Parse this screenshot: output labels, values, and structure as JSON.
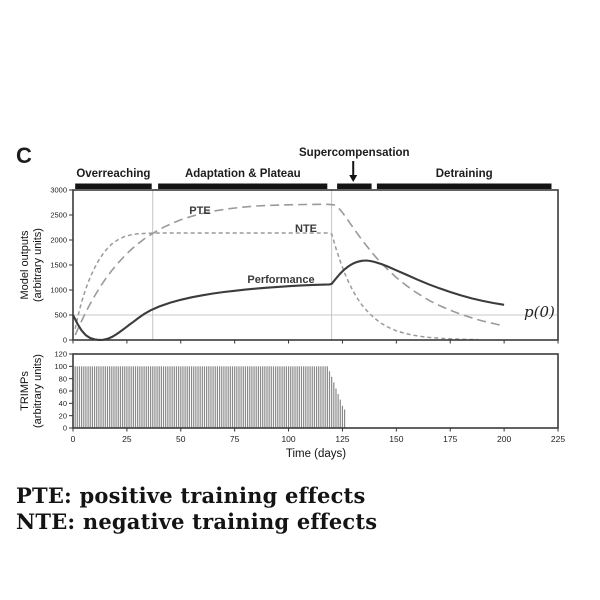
{
  "figure": {
    "panel_label": "C",
    "phases": [
      {
        "label": "Overreaching",
        "bar_days": [
          1,
          36.5
        ]
      },
      {
        "label": "Adaptation & Plateau",
        "bar_days": [
          39.5,
          118
        ]
      },
      {
        "label": "Supercompensation",
        "bar_days": [
          122.5,
          138.5
        ],
        "arrow_day": 130
      },
      {
        "label": "Detraining",
        "bar_days": [
          141,
          222
        ]
      }
    ]
  },
  "caption": {
    "line1": "PTE: positive training effects",
    "line2": "NTE: negative training effects"
  },
  "chart_data": [
    {
      "type": "line",
      "ylabel_line1": "Model outputs",
      "ylabel_line2": "(arbitrary units)",
      "ylim": [
        0,
        3000
      ],
      "yticks": [
        0,
        500,
        1000,
        1500,
        2000,
        2500,
        3000
      ],
      "xlim": [
        0,
        225
      ],
      "grid": false,
      "reference_lines": {
        "horizontal_p0_level": 500,
        "vertical_days": [
          37,
          120
        ]
      },
      "annotations": [
        {
          "text": "p(0)",
          "x_day": 211,
          "y_value": 500
        }
      ],
      "series": [
        {
          "name": "PTE",
          "style": "long-dash",
          "color": "#9a9a9a",
          "points": [
            [
              1,
              100
            ],
            [
              3,
              290
            ],
            [
              5,
              475
            ],
            [
              7,
              645
            ],
            [
              9,
              805
            ],
            [
              11,
              950
            ],
            [
              13,
              1090
            ],
            [
              15,
              1215
            ],
            [
              18,
              1390
            ],
            [
              21,
              1545
            ],
            [
              24,
              1685
            ],
            [
              27,
              1810
            ],
            [
              30,
              1920
            ],
            [
              33,
              2020
            ],
            [
              36,
              2105
            ],
            [
              39,
              2185
            ],
            [
              42,
              2255
            ],
            [
              46,
              2335
            ],
            [
              50,
              2405
            ],
            [
              55,
              2475
            ],
            [
              60,
              2530
            ],
            [
              66,
              2585
            ],
            [
              72,
              2625
            ],
            [
              78,
              2655
            ],
            [
              85,
              2680
            ],
            [
              92,
              2695
            ],
            [
              100,
              2705
            ],
            [
              108,
              2710
            ],
            [
              118,
              2715
            ],
            [
              121,
              2705
            ],
            [
              123,
              2650
            ],
            [
              125,
              2550
            ],
            [
              127,
              2430
            ],
            [
              129,
              2305
            ],
            [
              131,
              2185
            ],
            [
              133,
              2065
            ],
            [
              135,
              1950
            ],
            [
              137,
              1840
            ],
            [
              139,
              1735
            ],
            [
              141,
              1635
            ],
            [
              144,
              1495
            ],
            [
              147,
              1370
            ],
            [
              150,
              1250
            ],
            [
              154,
              1110
            ],
            [
              158,
              985
            ],
            [
              162,
              875
            ],
            [
              166,
              775
            ],
            [
              170,
              690
            ],
            [
              174,
              615
            ],
            [
              178,
              545
            ],
            [
              182,
              485
            ],
            [
              186,
              430
            ],
            [
              190,
              380
            ],
            [
              194,
              340
            ],
            [
              197,
              310
            ],
            [
              200,
              285
            ]
          ]
        },
        {
          "name": "NTE",
          "style": "short-dash",
          "color": "#9a9a9a",
          "points": [
            [
              1,
              225
            ],
            [
              2,
              420
            ],
            [
              3,
              600
            ],
            [
              4,
              760
            ],
            [
              6,
              1030
            ],
            [
              8,
              1255
            ],
            [
              10,
              1445
            ],
            [
              12,
              1600
            ],
            [
              14,
              1730
            ],
            [
              16,
              1835
            ],
            [
              18,
              1920
            ],
            [
              21,
              2010
            ],
            [
              24,
              2070
            ],
            [
              27,
              2105
            ],
            [
              30,
              2125
            ],
            [
              34,
              2135
            ],
            [
              40,
              2140
            ],
            [
              50,
              2140
            ],
            [
              60,
              2140
            ],
            [
              75,
              2140
            ],
            [
              90,
              2140
            ],
            [
              105,
              2140
            ],
            [
              118,
              2140
            ],
            [
              120,
              2120
            ],
            [
              122,
              1830
            ],
            [
              124,
              1570
            ],
            [
              126,
              1340
            ],
            [
              128,
              1145
            ],
            [
              130,
              975
            ],
            [
              132,
              830
            ],
            [
              134,
              705
            ],
            [
              136,
              600
            ],
            [
              138,
              510
            ],
            [
              140,
              430
            ],
            [
              143,
              335
            ],
            [
              146,
              260
            ],
            [
              150,
              185
            ],
            [
              154,
              132
            ],
            [
              158,
              95
            ],
            [
              162,
              68
            ],
            [
              166,
              48
            ],
            [
              171,
              32
            ],
            [
              176,
              21
            ],
            [
              182,
              13
            ],
            [
              188,
              8
            ]
          ]
        },
        {
          "name": "Performance",
          "style": "solid",
          "color": "#3c3c3c",
          "points": [
            [
              0,
              500
            ],
            [
              2,
              330
            ],
            [
              4,
              190
            ],
            [
              6,
              95
            ],
            [
              8,
              40
            ],
            [
              10,
              12
            ],
            [
              12,
              3
            ],
            [
              14,
              5
            ],
            [
              16,
              25
            ],
            [
              18,
              60
            ],
            [
              20,
              110
            ],
            [
              22,
              170
            ],
            [
              24,
              235
            ],
            [
              26,
              300
            ],
            [
              28,
              365
            ],
            [
              30,
              430
            ],
            [
              33,
              520
            ],
            [
              36,
              595
            ],
            [
              40,
              670
            ],
            [
              45,
              745
            ],
            [
              50,
              805
            ],
            [
              55,
              855
            ],
            [
              60,
              895
            ],
            [
              65,
              930
            ],
            [
              70,
              960
            ],
            [
              75,
              985
            ],
            [
              80,
              1008
            ],
            [
              85,
              1028
            ],
            [
              90,
              1046
            ],
            [
              95,
              1062
            ],
            [
              100,
              1076
            ],
            [
              105,
              1088
            ],
            [
              110,
              1098
            ],
            [
              115,
              1106
            ],
            [
              119,
              1112
            ],
            [
              120,
              1125
            ],
            [
              122,
              1230
            ],
            [
              124,
              1330
            ],
            [
              126,
              1415
            ],
            [
              128,
              1480
            ],
            [
              130,
              1530
            ],
            [
              132,
              1565
            ],
            [
              134,
              1585
            ],
            [
              136,
              1590
            ],
            [
              138,
              1580
            ],
            [
              140,
              1560
            ],
            [
              143,
              1520
            ],
            [
              146,
              1470
            ],
            [
              150,
              1395
            ],
            [
              155,
              1300
            ],
            [
              160,
              1205
            ],
            [
              165,
              1115
            ],
            [
              170,
              1035
            ],
            [
              175,
              960
            ],
            [
              180,
              893
            ],
            [
              185,
              833
            ],
            [
              190,
              782
            ],
            [
              195,
              740
            ],
            [
              200,
              705
            ]
          ]
        }
      ]
    },
    {
      "type": "bar",
      "ylabel_line1": "TRIMPs",
      "ylabel_line2": "(arbitrary units)",
      "ylim": [
        0,
        120
      ],
      "yticks": [
        0,
        20,
        40,
        60,
        80,
        100,
        120
      ],
      "xlim": [
        0,
        225
      ],
      "xticks": [
        0,
        25,
        50,
        75,
        100,
        125,
        150,
        175,
        200,
        225
      ],
      "xlabel": "Time (days)",
      "bars": {
        "color": "#8a8a8a",
        "plateau_day_start": 1,
        "plateau_day_end": 118,
        "plateau_value": 100,
        "taper": [
          [
            119,
            92
          ],
          [
            120,
            83
          ],
          [
            121,
            74
          ],
          [
            122,
            64
          ],
          [
            123,
            55
          ],
          [
            124,
            46
          ],
          [
            125,
            36
          ],
          [
            126,
            30
          ]
        ]
      }
    }
  ]
}
